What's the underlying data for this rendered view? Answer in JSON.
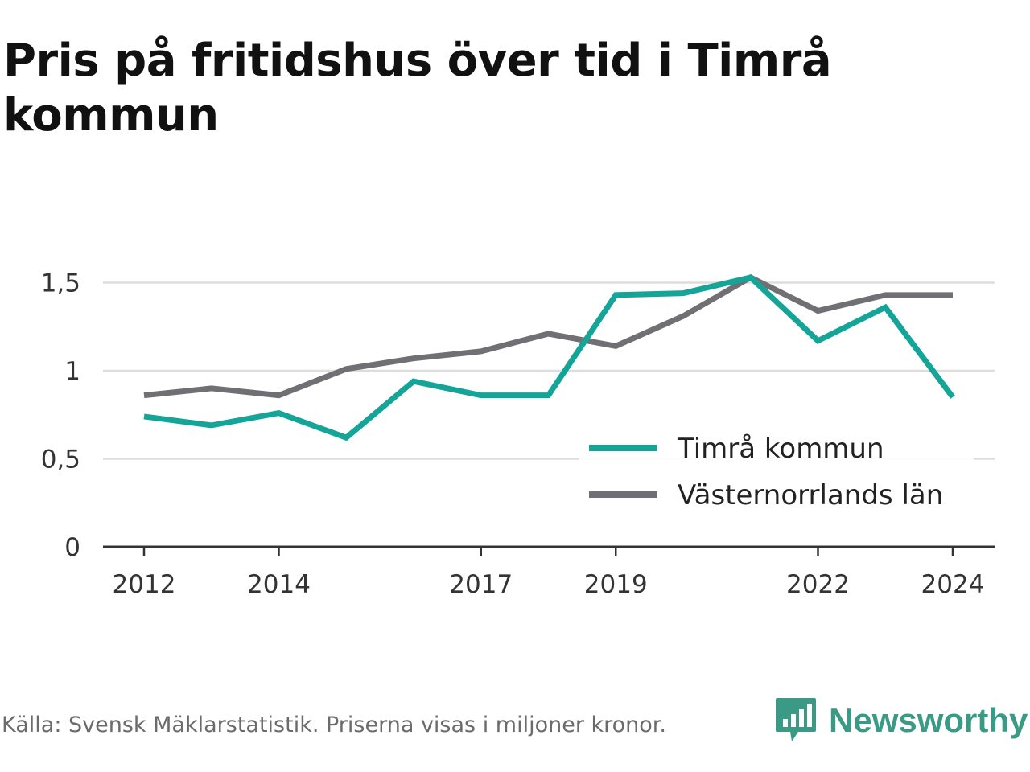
{
  "title": "Pris på fritidshus över tid i Timrå kommun",
  "footer": {
    "source": "Källa: Svensk Mäklarstatistik. Priserna visas i miljoner kronor.",
    "brand": "Newsworthy",
    "brand_icon": "bar-chart-speech-bubble-icon"
  },
  "colors": {
    "primary": "#14a598",
    "secondary": "#707074",
    "grid": "#dddddd",
    "axis": "#333333",
    "brand": "#3a9a85"
  },
  "chart_data": {
    "type": "line",
    "x": [
      2012,
      2013,
      2014,
      2015,
      2016,
      2017,
      2018,
      2019,
      2020,
      2021,
      2022,
      2023,
      2024
    ],
    "x_tick_labels": [
      "2012",
      "2014",
      "2017",
      "2019",
      "2022",
      "2024"
    ],
    "y_tick_labels": [
      "0",
      "0,5",
      "1",
      "1,5"
    ],
    "y_ticks": [
      0,
      0.5,
      1,
      1.5
    ],
    "ylim": [
      0,
      1.5
    ],
    "grid": true,
    "legend_position": "bottom-right",
    "series": [
      {
        "name": "Timrå kommun",
        "color": "#14a598",
        "values": [
          0.74,
          0.69,
          0.76,
          0.62,
          0.94,
          0.86,
          0.86,
          1.43,
          1.44,
          1.53,
          1.17,
          1.36,
          0.85
        ]
      },
      {
        "name": "Västernorrlands län",
        "color": "#707074",
        "values": [
          0.86,
          0.9,
          0.86,
          1.01,
          1.07,
          1.11,
          1.21,
          1.14,
          1.31,
          1.53,
          1.34,
          1.43,
          1.43
        ]
      }
    ]
  }
}
